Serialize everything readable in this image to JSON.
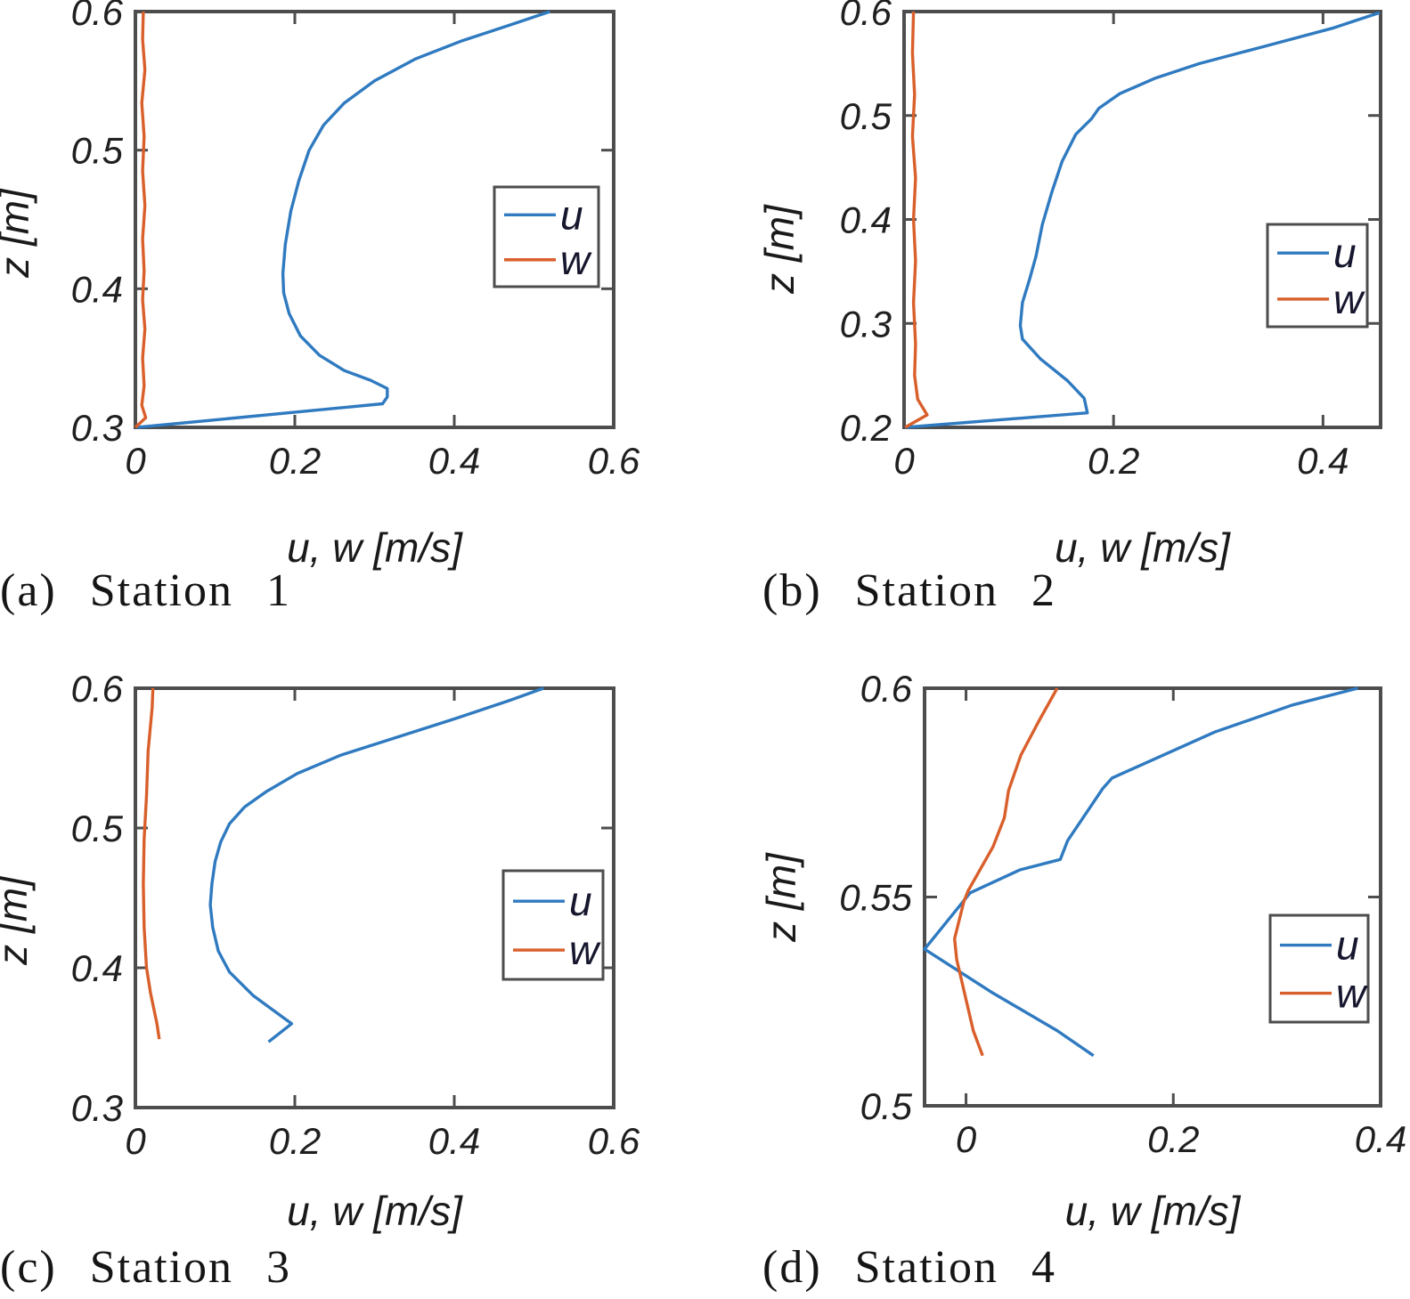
{
  "colors": {
    "u_line": "#2f7ac0",
    "w_line": "#d95f2b",
    "axis": "#4d4d4d",
    "text": "#1f1f1f",
    "legend_border": "#4d4d4d",
    "legend_bg": "#ffffff"
  },
  "chart_data": [
    {
      "id": "a",
      "type": "line",
      "caption": "(a) Station 1",
      "xlabel": "u, w [m/s]",
      "ylabel": "z [m]",
      "xlim": [
        0,
        0.6
      ],
      "ylim": [
        0.3,
        0.6
      ],
      "xticks": [
        0,
        0.2,
        0.4,
        0.6
      ],
      "xtick_labels": [
        "0",
        "0.2",
        "0.4",
        "0.6"
      ],
      "yticks": [
        0.3,
        0.4,
        0.5,
        0.6
      ],
      "ytick_labels": [
        "0.3",
        "0.4",
        "0.5",
        "0.6"
      ],
      "grid": false,
      "legend": {
        "entries": [
          "u",
          "w"
        ],
        "position": "right-middle"
      },
      "series": [
        {
          "name": "u",
          "color_key": "u_line",
          "points": [
            [
              0.002,
              0.3
            ],
            [
              0.31,
              0.317
            ],
            [
              0.316,
              0.322
            ],
            [
              0.316,
              0.328
            ],
            [
              0.295,
              0.334
            ],
            [
              0.262,
              0.341
            ],
            [
              0.231,
              0.352
            ],
            [
              0.207,
              0.366
            ],
            [
              0.193,
              0.382
            ],
            [
              0.186,
              0.397
            ],
            [
              0.185,
              0.411
            ],
            [
              0.188,
              0.432
            ],
            [
              0.195,
              0.456
            ],
            [
              0.205,
              0.478
            ],
            [
              0.218,
              0.5
            ],
            [
              0.236,
              0.518
            ],
            [
              0.262,
              0.534
            ],
            [
              0.3,
              0.55
            ],
            [
              0.352,
              0.566
            ],
            [
              0.41,
              0.579
            ],
            [
              0.468,
              0.59
            ],
            [
              0.52,
              0.6
            ]
          ]
        },
        {
          "name": "w",
          "color_key": "w_line",
          "points": [
            [
              0.0,
              0.3
            ],
            [
              0.013,
              0.307
            ],
            [
              0.008,
              0.316
            ],
            [
              0.011,
              0.33
            ],
            [
              0.009,
              0.35
            ],
            [
              0.012,
              0.371
            ],
            [
              0.009,
              0.392
            ],
            [
              0.011,
              0.413
            ],
            [
              0.009,
              0.436
            ],
            [
              0.012,
              0.46
            ],
            [
              0.009,
              0.485
            ],
            [
              0.011,
              0.51
            ],
            [
              0.008,
              0.534
            ],
            [
              0.012,
              0.558
            ],
            [
              0.009,
              0.58
            ],
            [
              0.01,
              0.6
            ]
          ]
        }
      ]
    },
    {
      "id": "b",
      "type": "line",
      "caption": "(b) Station 2",
      "xlabel": "u, w [m/s]",
      "ylabel": "z [m]",
      "xlim": [
        0,
        0.455
      ],
      "ylim": [
        0.2,
        0.6
      ],
      "xticks": [
        0,
        0.2,
        0.4
      ],
      "xtick_labels": [
        "0",
        "0.2",
        "0.4"
      ],
      "yticks": [
        0.2,
        0.3,
        0.4,
        0.5,
        0.6
      ],
      "ytick_labels": [
        "0.2",
        "0.3",
        "0.4",
        "0.5",
        "0.6"
      ],
      "grid": false,
      "legend": {
        "entries": [
          "u",
          "w"
        ],
        "position": "right-middle"
      },
      "series": [
        {
          "name": "u",
          "color_key": "u_line",
          "points": [
            [
              0.001,
              0.2
            ],
            [
              0.175,
              0.214
            ],
            [
              0.172,
              0.228
            ],
            [
              0.156,
              0.245
            ],
            [
              0.13,
              0.266
            ],
            [
              0.113,
              0.285
            ],
            [
              0.111,
              0.298
            ],
            [
              0.113,
              0.32
            ],
            [
              0.12,
              0.343
            ],
            [
              0.126,
              0.365
            ],
            [
              0.132,
              0.395
            ],
            [
              0.141,
              0.426
            ],
            [
              0.151,
              0.456
            ],
            [
              0.164,
              0.482
            ],
            [
              0.179,
              0.497
            ],
            [
              0.186,
              0.507
            ],
            [
              0.206,
              0.521
            ],
            [
              0.24,
              0.536
            ],
            [
              0.282,
              0.55
            ],
            [
              0.346,
              0.567
            ],
            [
              0.409,
              0.584
            ],
            [
              0.454,
              0.599
            ]
          ]
        },
        {
          "name": "w",
          "color_key": "w_line",
          "points": [
            [
              0.001,
              0.2
            ],
            [
              0.022,
              0.212
            ],
            [
              0.013,
              0.227
            ],
            [
              0.01,
              0.25
            ],
            [
              0.011,
              0.28
            ],
            [
              0.009,
              0.32
            ],
            [
              0.011,
              0.36
            ],
            [
              0.009,
              0.4
            ],
            [
              0.011,
              0.44
            ],
            [
              0.008,
              0.48
            ],
            [
              0.01,
              0.52
            ],
            [
              0.008,
              0.56
            ],
            [
              0.009,
              0.6
            ]
          ]
        }
      ]
    },
    {
      "id": "c",
      "type": "line",
      "caption": "(c) Station 3",
      "xlabel": "u, w [m/s]",
      "ylabel": "z [m]",
      "xlim": [
        0,
        0.6
      ],
      "ylim": [
        0.3,
        0.6
      ],
      "xticks": [
        0,
        0.2,
        0.4,
        0.6
      ],
      "xtick_labels": [
        "0",
        "0.2",
        "0.4",
        "0.6"
      ],
      "yticks": [
        0.3,
        0.4,
        0.5,
        0.6
      ],
      "ytick_labels": [
        "0.3",
        "0.4",
        "0.5",
        "0.6"
      ],
      "grid": false,
      "legend": {
        "entries": [
          "u",
          "w"
        ],
        "position": "right-middle"
      },
      "series": [
        {
          "name": "u",
          "color_key": "u_line",
          "points": [
            [
              0.167,
              0.347
            ],
            [
              0.196,
              0.36
            ],
            [
              0.148,
              0.38
            ],
            [
              0.118,
              0.397
            ],
            [
              0.104,
              0.412
            ],
            [
              0.097,
              0.429
            ],
            [
              0.094,
              0.445
            ],
            [
              0.096,
              0.46
            ],
            [
              0.1,
              0.476
            ],
            [
              0.107,
              0.49
            ],
            [
              0.118,
              0.503
            ],
            [
              0.137,
              0.515
            ],
            [
              0.164,
              0.526
            ],
            [
              0.203,
              0.539
            ],
            [
              0.257,
              0.552
            ],
            [
              0.323,
              0.564
            ],
            [
              0.4,
              0.578
            ],
            [
              0.468,
              0.591
            ],
            [
              0.512,
              0.6
            ]
          ]
        },
        {
          "name": "w",
          "color_key": "w_line",
          "points": [
            [
              0.03,
              0.349
            ],
            [
              0.027,
              0.36
            ],
            [
              0.019,
              0.382
            ],
            [
              0.014,
              0.4
            ],
            [
              0.011,
              0.429
            ],
            [
              0.01,
              0.46
            ],
            [
              0.011,
              0.492
            ],
            [
              0.014,
              0.523
            ],
            [
              0.016,
              0.555
            ],
            [
              0.021,
              0.586
            ],
            [
              0.022,
              0.6
            ]
          ]
        }
      ]
    },
    {
      "id": "d",
      "type": "line",
      "caption": "(d) Station 4",
      "xlabel": "u, w [m/s]",
      "ylabel": "z [m]",
      "xlim": [
        -0.04,
        0.4
      ],
      "ylim": [
        0.5,
        0.6
      ],
      "xticks": [
        0,
        0.2,
        0.4
      ],
      "xtick_labels": [
        "0",
        "0.2",
        "0.4"
      ],
      "yticks": [
        0.5,
        0.55,
        0.6
      ],
      "ytick_labels": [
        "0.5",
        "0.55",
        "0.6"
      ],
      "grid": false,
      "legend": {
        "entries": [
          "u",
          "w"
        ],
        "position": "right-middle"
      },
      "series": [
        {
          "name": "u",
          "color_key": "u_line",
          "points": [
            [
              0.123,
              0.512
            ],
            [
              0.088,
              0.518
            ],
            [
              0.026,
              0.527
            ],
            [
              -0.04,
              0.5375
            ],
            [
              0.004,
              0.551
            ],
            [
              0.052,
              0.5565
            ],
            [
              0.091,
              0.559
            ],
            [
              0.098,
              0.5635
            ],
            [
              0.132,
              0.576
            ],
            [
              0.141,
              0.5785
            ],
            [
              0.24,
              0.5895
            ],
            [
              0.315,
              0.596
            ],
            [
              0.378,
              0.6
            ]
          ]
        },
        {
          "name": "w",
          "color_key": "w_line",
          "points": [
            [
              0.016,
              0.512
            ],
            [
              0.007,
              0.518
            ],
            [
              -0.009,
              0.535
            ],
            [
              -0.011,
              0.54
            ],
            [
              -0.002,
              0.549
            ],
            [
              0.002,
              0.5515
            ],
            [
              0.026,
              0.562
            ],
            [
              0.037,
              0.569
            ],
            [
              0.041,
              0.5755
            ],
            [
              0.053,
              0.584
            ],
            [
              0.07,
              0.592
            ],
            [
              0.088,
              0.6
            ]
          ]
        }
      ]
    }
  ]
}
